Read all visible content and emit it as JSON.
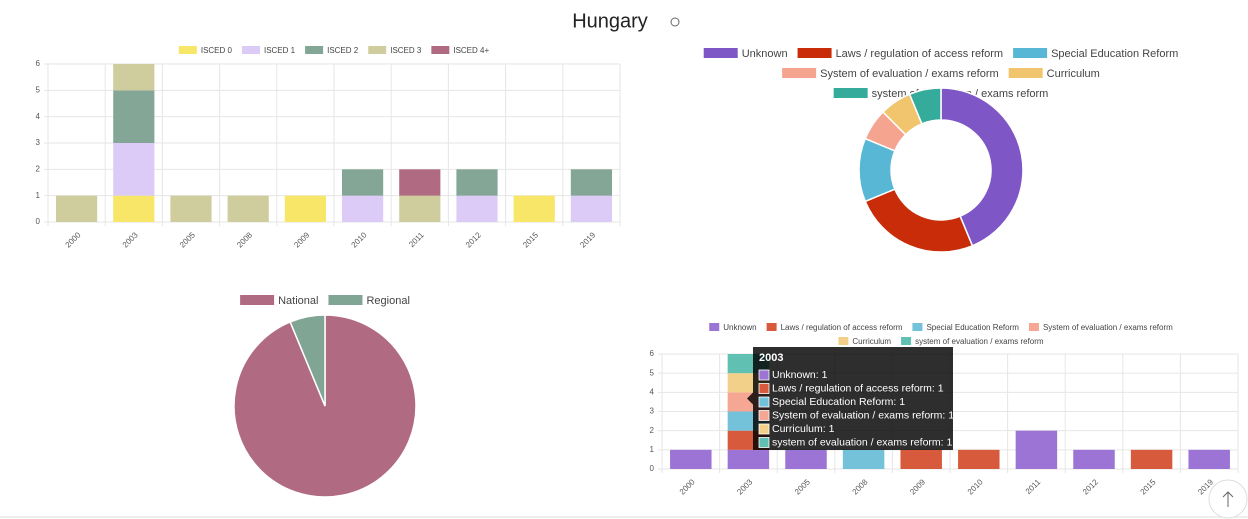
{
  "title": "Hungary",
  "chart_data": [
    {
      "type": "bar",
      "stacked": true,
      "categories": [
        "2000",
        "2003",
        "2005",
        "2008",
        "2009",
        "2010",
        "2011",
        "2012",
        "2015",
        "2019"
      ],
      "series": [
        {
          "name": "ISCED 0",
          "color": "#f7e668",
          "values": [
            0,
            1,
            0,
            0,
            1,
            0,
            0,
            0,
            1,
            0
          ]
        },
        {
          "name": "ISCED 1",
          "color": "#dccbf6",
          "values": [
            0,
            2,
            0,
            0,
            0,
            1,
            0,
            1,
            0,
            1
          ]
        },
        {
          "name": "ISCED 2",
          "color": "#84a696",
          "values": [
            0,
            2,
            0,
            0,
            0,
            1,
            0,
            1,
            0,
            1
          ]
        },
        {
          "name": "ISCED 3",
          "color": "#cfcd9d",
          "values": [
            1,
            1,
            1,
            1,
            0,
            0,
            1,
            0,
            0,
            0
          ]
        },
        {
          "name": "ISCED 4+",
          "color": "#b06b82",
          "values": [
            0,
            0,
            0,
            0,
            0,
            0,
            1,
            0,
            0,
            0
          ]
        }
      ],
      "ylim": [
        0,
        6
      ],
      "yticks": [
        0,
        1,
        2,
        3,
        4,
        5,
        6
      ],
      "grid": true
    },
    {
      "type": "doughnut",
      "categories": [
        "Unknown",
        "Laws / regulation of access reform",
        "Special Education Reform",
        "System of evaluation / exams reform",
        "Curriculum",
        "system of evaluation / exams reform"
      ],
      "values": [
        7,
        4,
        2,
        1,
        1,
        1
      ],
      "colors": [
        "#7e56c6",
        "#c92c09",
        "#58b7d4",
        "#f5a48f",
        "#f0c56d",
        "#35ab9b"
      ]
    },
    {
      "type": "pie",
      "categories": [
        "National",
        "Regional"
      ],
      "values": [
        15,
        1
      ],
      "colors": [
        "#b06b82",
        "#80a595"
      ]
    },
    {
      "type": "bar",
      "stacked": true,
      "categories": [
        "2000",
        "2003",
        "2005",
        "2008",
        "2009",
        "2010",
        "2011",
        "2012",
        "2015",
        "2019"
      ],
      "series": [
        {
          "name": "Unknown",
          "color": "#9c74d6",
          "values": [
            1,
            1,
            1,
            0,
            0,
            0,
            2,
            1,
            0,
            1
          ]
        },
        {
          "name": "Laws / regulation of access reform",
          "color": "#d85a3c",
          "values": [
            0,
            1,
            0,
            0,
            1,
            1,
            0,
            0,
            1,
            0
          ]
        },
        {
          "name": "Special Education Reform",
          "color": "#74c2d9",
          "values": [
            0,
            1,
            0,
            1,
            0,
            0,
            0,
            0,
            0,
            0
          ]
        },
        {
          "name": "System of evaluation / exams reform",
          "color": "#f6a794",
          "values": [
            0,
            1,
            0,
            0,
            0,
            0,
            0,
            0,
            0,
            0
          ]
        },
        {
          "name": "Curriculum",
          "color": "#f3d08a",
          "values": [
            0,
            1,
            0,
            0,
            0,
            0,
            0,
            0,
            0,
            0
          ]
        },
        {
          "name": "system of evaluation / exams reform",
          "color": "#60c0b1",
          "values": [
            0,
            1,
            0,
            0,
            0,
            0,
            0,
            0,
            0,
            0
          ]
        }
      ],
      "ylim": [
        0,
        6
      ],
      "yticks": [
        0,
        1,
        2,
        3,
        4,
        5,
        6
      ],
      "grid": true,
      "tooltip": {
        "title": "2003",
        "lines": [
          "Unknown: 1",
          "Laws / regulation of access reform: 1",
          "Special Education Reform: 1",
          "System of evaluation / exams reform: 1",
          "Curriculum: 1",
          "system of evaluation / exams reform: 1"
        ]
      }
    }
  ]
}
